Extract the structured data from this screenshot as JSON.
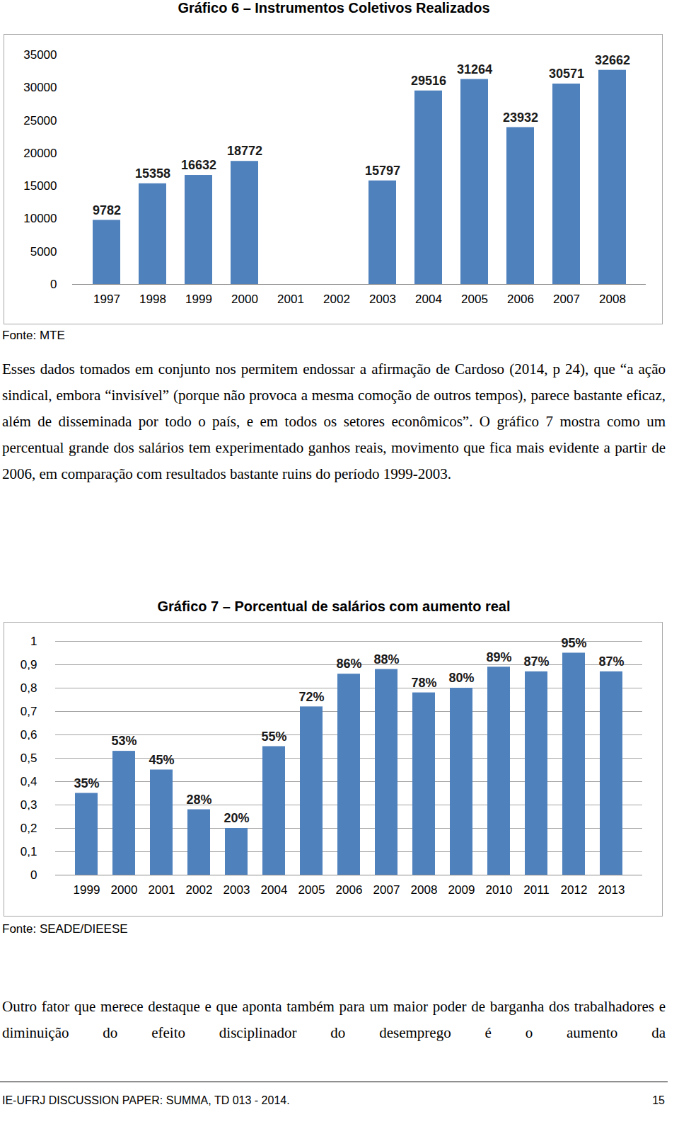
{
  "chart_data": [
    {
      "type": "bar",
      "title": "Gráfico 6 – Instrumentos Coletivos Realizados",
      "categories": [
        "1997",
        "1998",
        "1999",
        "2000",
        "2001",
        "2002",
        "2003",
        "2004",
        "2005",
        "2006",
        "2007",
        "2008"
      ],
      "values": [
        9782,
        15358,
        16632,
        18772,
        null,
        null,
        15797,
        29516,
        31264,
        23932,
        30571,
        32662
      ],
      "color": "#4f81bd",
      "ylim": [
        0,
        35000
      ],
      "yticks": [
        0,
        5000,
        10000,
        15000,
        20000,
        25000,
        30000,
        35000
      ],
      "grid": false,
      "data_labels": true
    },
    {
      "type": "bar",
      "title": "Gráfico 7 – Porcentual de salários com aumento real",
      "categories": [
        "1999",
        "2000",
        "2001",
        "2002",
        "2003",
        "2004",
        "2005",
        "2006",
        "2007",
        "2008",
        "2009",
        "2010",
        "2011",
        "2012",
        "2013"
      ],
      "values": [
        0.35,
        0.53,
        0.45,
        0.28,
        0.2,
        0.55,
        0.72,
        0.86,
        0.88,
        0.78,
        0.8,
        0.89,
        0.87,
        0.95,
        0.87
      ],
      "value_labels": [
        "35%",
        "53%",
        "45%",
        "28%",
        "20%",
        "55%",
        "72%",
        "86%",
        "88%",
        "78%",
        "80%",
        "89%",
        "87%",
        "95%",
        "87%"
      ],
      "color": "#4f81bd",
      "ylim": [
        0,
        1
      ],
      "yticks": [
        0,
        {
          "value": 0.1,
          "label": "0,1"
        },
        {
          "value": 0.2,
          "label": "0,2"
        },
        {
          "value": 0.3,
          "label": "0,3"
        },
        {
          "value": 0.4,
          "label": "0,4"
        },
        {
          "value": 0.5,
          "label": "0,5"
        },
        {
          "value": 0.6,
          "label": "0,6"
        },
        {
          "value": 0.7,
          "label": "0,7"
        },
        {
          "value": 0.8,
          "label": "0,8"
        },
        {
          "value": 0.9,
          "label": "0,9"
        },
        1
      ],
      "grid": true,
      "data_labels": true
    }
  ],
  "page": {
    "sources": [
      "Fonte: MTE",
      "Fonte: SEADE/DIEESE"
    ],
    "paragraphs": [
      "Esses dados tomados em conjunto nos permitem endossar a afirmação de Cardoso (2014, p 24), que “a ação sindical, embora “invisível” (porque não provoca a mesma comoção de outros tempos), parece bastante eficaz, além de disseminada por todo o país, e em todos os setores econômicos”. O gráfico 7 mostra como um percentual grande dos salários tem experimentado ganhos reais, movimento que fica mais evidente a partir de 2006, em comparação com resultados bastante ruins do período 1999-2003.",
      "Outro fator que merece destaque e que aponta também para um maior poder de barganha dos trabalhadores e diminuição do efeito disciplinador do desemprego é o aumento da"
    ],
    "footer": {
      "left": "IE-UFRJ DISCUSSION PAPER: SUMMA, TD 013 - 2014.",
      "right": "15"
    }
  }
}
